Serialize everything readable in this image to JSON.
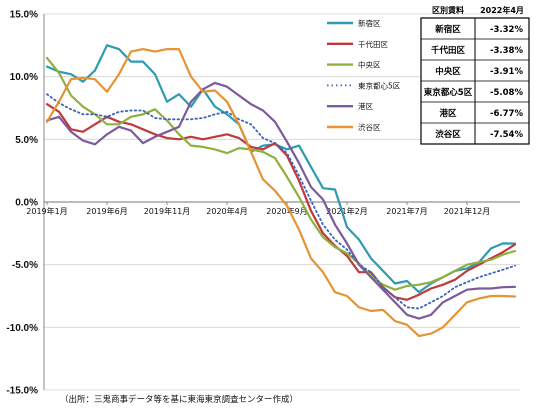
{
  "chart_data": {
    "type": "line",
    "x": [
      "2019年1月",
      "2019年2月",
      "2019年3月",
      "2019年4月",
      "2019年5月",
      "2019年6月",
      "2019年7月",
      "2019年8月",
      "2019年9月",
      "2019年10月",
      "2019年11月",
      "2019年12月",
      "2020年1月",
      "2020年2月",
      "2020年3月",
      "2020年4月",
      "2020年5月",
      "2020年6月",
      "2020年7月",
      "2020年8月",
      "2020年9月",
      "2020年10月",
      "2020年11月",
      "2020年12月",
      "2021年1月",
      "2021年2月",
      "2021年3月",
      "2021年4月",
      "2021年5月",
      "2021年6月",
      "2021年7月",
      "2021年8月",
      "2021年9月",
      "2021年10月",
      "2021年11月",
      "2021年12月",
      "2022年1月",
      "2022年2月",
      "2022年3月",
      "2022年4月"
    ],
    "x_tick_labels": [
      "2019年1月",
      "2019年6月",
      "2019年11月",
      "2020年4月",
      "2020年9月",
      "2021年2月",
      "2021年7月",
      "2021年12月"
    ],
    "x_tick_indices": [
      0,
      5,
      10,
      15,
      20,
      25,
      30,
      35
    ],
    "ylim": [
      -15,
      15
    ],
    "y_ticks": [
      15,
      10,
      5,
      0,
      -5,
      -10,
      -15
    ],
    "y_tick_labels": [
      "15.0%",
      "10.0%",
      "5.0%",
      "0.0%",
      "-5.0%",
      "-10.0%",
      "-15.0%"
    ],
    "grid": true,
    "legend_position": "top-right",
    "series": [
      {
        "name": "新宿区",
        "color": "#2e9bb0",
        "dash": "solid",
        "values": [
          10.8,
          10.4,
          10.2,
          9.6,
          10.5,
          12.5,
          12.2,
          11.2,
          11.2,
          10.2,
          8.0,
          8.6,
          7.6,
          9.0,
          7.6,
          7.0,
          6.2,
          4.0,
          4.5,
          4.6,
          4.2,
          4.5,
          2.8,
          1.1,
          1.0,
          -2.0,
          -3.0,
          -4.5,
          -5.5,
          -6.5,
          -6.3,
          -7.2,
          -6.5,
          -6.0,
          -5.5,
          -5.3,
          -4.8,
          -3.7,
          -3.3,
          -3.32
        ]
      },
      {
        "name": "千代田区",
        "color": "#c0393b",
        "dash": "solid",
        "values": [
          7.8,
          7.2,
          5.8,
          5.6,
          6.2,
          6.8,
          6.4,
          6.2,
          5.8,
          5.4,
          5.1,
          5.0,
          5.2,
          5.0,
          5.2,
          5.4,
          5.1,
          4.4,
          4.2,
          4.7,
          3.7,
          1.7,
          -0.7,
          -2.5,
          -3.5,
          -4.3,
          -5.6,
          -5.6,
          -6.8,
          -7.6,
          -7.8,
          -7.4,
          -6.9,
          -6.6,
          -6.2,
          -5.5,
          -5.0,
          -4.5,
          -4.0,
          -3.38
        ]
      },
      {
        "name": "中央区",
        "color": "#8fb03e",
        "dash": "solid",
        "values": [
          11.5,
          10.3,
          8.5,
          7.6,
          7.0,
          6.2,
          6.2,
          6.8,
          7.0,
          7.4,
          6.5,
          5.4,
          4.5,
          4.4,
          4.2,
          3.9,
          4.3,
          4.2,
          4.0,
          3.5,
          2.0,
          0.4,
          -1.4,
          -2.8,
          -3.6,
          -4.1,
          -4.9,
          -5.9,
          -6.6,
          -7.0,
          -6.7,
          -6.6,
          -6.4,
          -6.0,
          -5.5,
          -5.0,
          -4.8,
          -4.6,
          -4.2,
          -3.91
        ]
      },
      {
        "name": "東京都心5区",
        "color": "#3b63b5",
        "dash": "dot",
        "values": [
          8.6,
          7.9,
          7.4,
          7.0,
          7.0,
          6.8,
          7.2,
          7.3,
          7.3,
          6.7,
          6.6,
          6.6,
          6.6,
          6.7,
          7.0,
          7.2,
          6.6,
          6.2,
          5.1,
          4.7,
          3.9,
          2.1,
          0.1,
          -1.8,
          -3.0,
          -3.8,
          -5.0,
          -5.6,
          -6.8,
          -7.6,
          -8.4,
          -8.5,
          -8.0,
          -7.5,
          -6.8,
          -6.4,
          -6.0,
          -5.7,
          -5.4,
          -5.08
        ]
      },
      {
        "name": "港区",
        "color": "#7b5a9e",
        "dash": "solid",
        "values": [
          6.5,
          6.8,
          5.6,
          4.9,
          4.6,
          5.4,
          6.0,
          5.7,
          4.7,
          5.2,
          5.6,
          6.0,
          8.0,
          9.0,
          9.5,
          9.2,
          8.5,
          7.8,
          7.3,
          6.4,
          4.8,
          3.1,
          1.2,
          0.2,
          -1.8,
          -3.3,
          -5.0,
          -6.0,
          -7.0,
          -8.0,
          -9.0,
          -9.3,
          -9.0,
          -8.0,
          -7.5,
          -7.0,
          -6.9,
          -6.9,
          -6.8,
          -6.77
        ]
      },
      {
        "name": "渋谷区",
        "color": "#e49433",
        "dash": "solid",
        "values": [
          6.4,
          8.0,
          9.8,
          9.9,
          9.8,
          8.8,
          10.2,
          12.0,
          12.2,
          12.0,
          12.2,
          12.2,
          10.0,
          8.8,
          8.9,
          8.0,
          6.2,
          4.0,
          1.8,
          0.9,
          -0.3,
          -2.2,
          -4.5,
          -5.6,
          -7.2,
          -7.5,
          -8.4,
          -8.7,
          -8.6,
          -9.5,
          -9.8,
          -10.7,
          -10.5,
          -10.0,
          -9.0,
          -8.0,
          -7.7,
          -7.5,
          -7.5,
          -7.54
        ]
      }
    ]
  },
  "table": {
    "header_area": "区別賃料",
    "header_period": "2022年4月",
    "rows": [
      {
        "area": "新宿区",
        "value": "-3.32%"
      },
      {
        "area": "千代田区",
        "value": "-3.38%"
      },
      {
        "area": "中央区",
        "value": "-3.91%"
      },
      {
        "area": "東京都心5区",
        "value": "-5.08%"
      },
      {
        "area": "港区",
        "value": "-6.77%"
      },
      {
        "area": "渋谷区",
        "value": "-7.54%"
      }
    ]
  },
  "source_note": "（出所：三鬼商事データ等を基に東海東京調査センター作成）"
}
